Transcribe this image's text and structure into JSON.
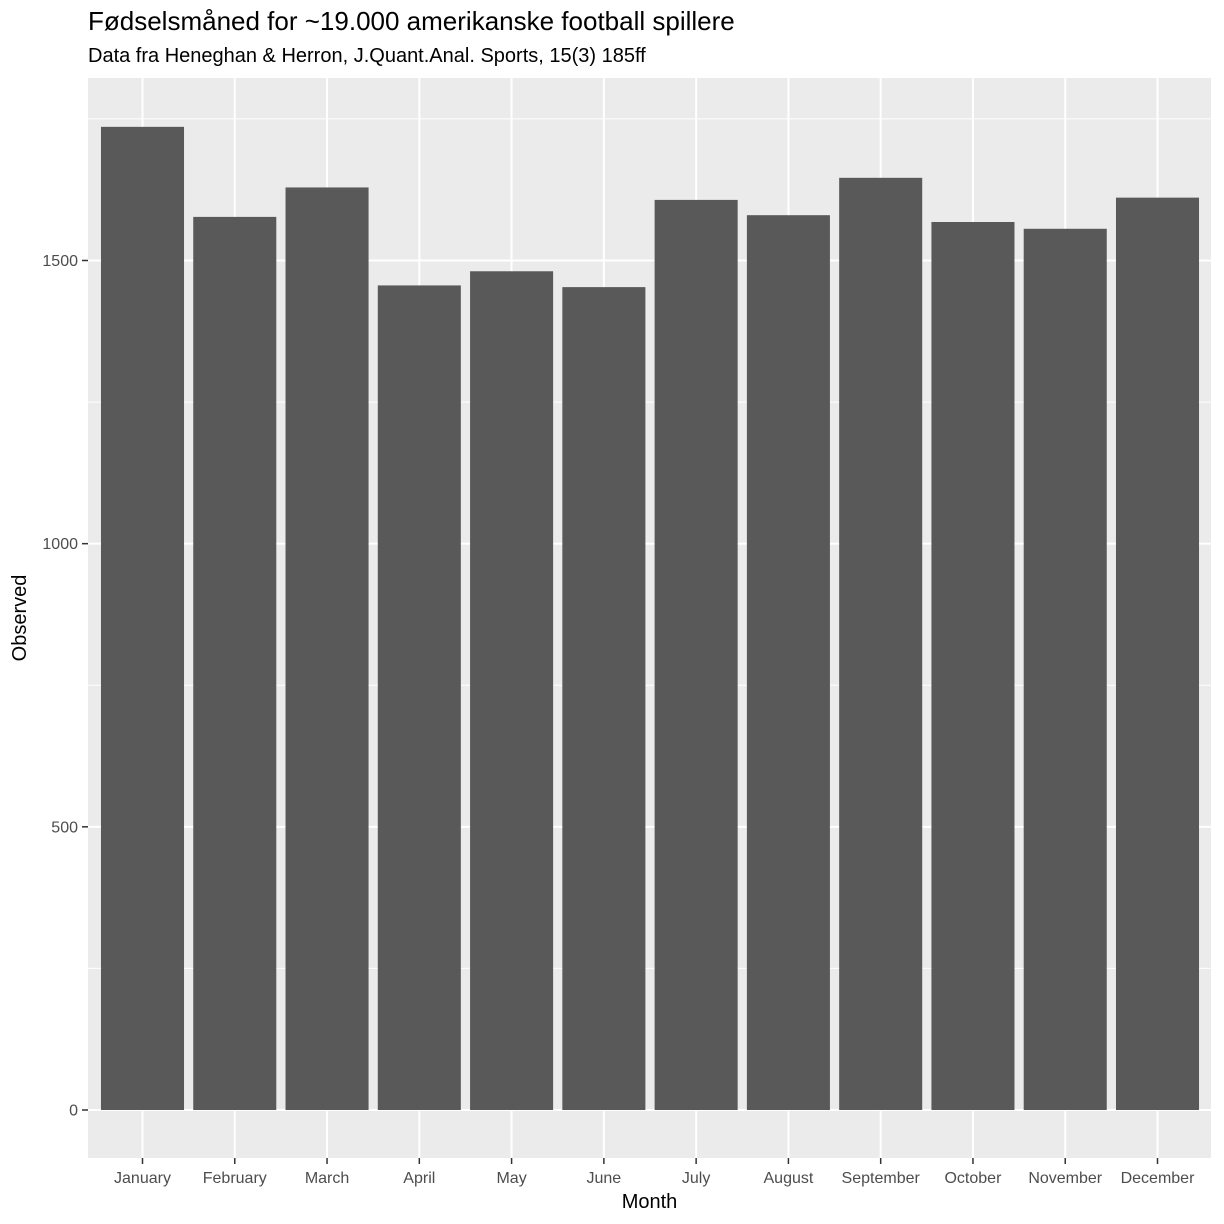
{
  "chart_data": {
    "type": "bar",
    "title": "Fødselsmåned for ~19.000 amerikanske football spillere",
    "subtitle": "Data fra Heneghan & Herron, J.Quant.Anal. Sports, 15(3) 185ff",
    "xlabel": "Month",
    "ylabel": "Observed",
    "categories": [
      "January",
      "February",
      "March",
      "April",
      "May",
      "June",
      "July",
      "August",
      "September",
      "October",
      "November",
      "December"
    ],
    "values": [
      1736,
      1577,
      1629,
      1456,
      1481,
      1453,
      1607,
      1580,
      1646,
      1568,
      1556,
      1611
    ],
    "ylim": [
      0,
      1750
    ],
    "yticks": [
      0,
      500,
      1000,
      1500
    ],
    "ytick_labels": [
      "0",
      "500",
      "1000",
      "1500"
    ],
    "grid": true,
    "legend": "none",
    "colors": {
      "bar": "#595959",
      "panel": "#ebebeb",
      "grid": "#ffffff",
      "tick_text": "#4d4d4d",
      "tick_mark": "#333333"
    }
  }
}
